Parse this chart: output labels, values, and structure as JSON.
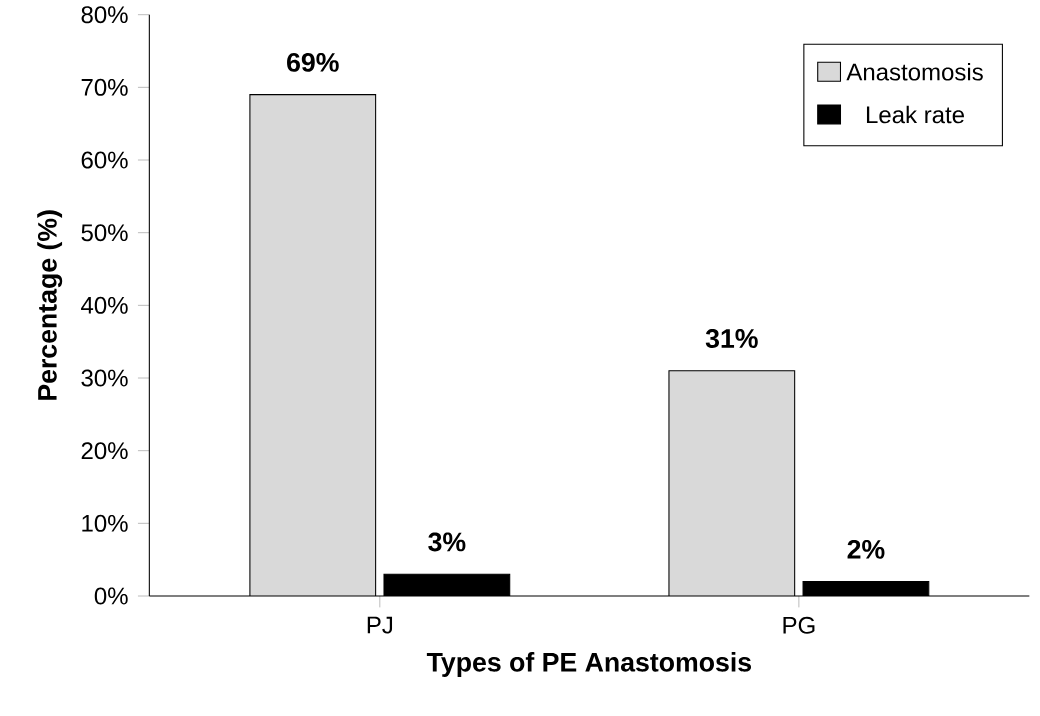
{
  "chart_data": {
    "type": "bar",
    "xlabel": "Types of PE Anastomosis",
    "ylabel": "Percentage (%)",
    "categories": [
      "PJ",
      "PG"
    ],
    "series": [
      {
        "name": "Anastomosis",
        "color": "#d9d9d9",
        "values": [
          69,
          31
        ],
        "value_labels": [
          "69%",
          "31%"
        ]
      },
      {
        "name": "Leak rate",
        "color": "#000000",
        "values": [
          3,
          2
        ],
        "value_labels": [
          "3%",
          "2%"
        ]
      }
    ],
    "ylim": [
      0,
      80
    ],
    "yticks": [
      {
        "value": 0,
        "label": "0%"
      },
      {
        "value": 10,
        "label": "10%"
      },
      {
        "value": 20,
        "label": "20%"
      },
      {
        "value": 30,
        "label": "30%"
      },
      {
        "value": 40,
        "label": "40%"
      },
      {
        "value": 50,
        "label": "50%"
      },
      {
        "value": 60,
        "label": "60%"
      },
      {
        "value": 70,
        "label": "70%"
      },
      {
        "value": 80,
        "label": "80%"
      }
    ],
    "grid": false,
    "legend": "top right"
  }
}
